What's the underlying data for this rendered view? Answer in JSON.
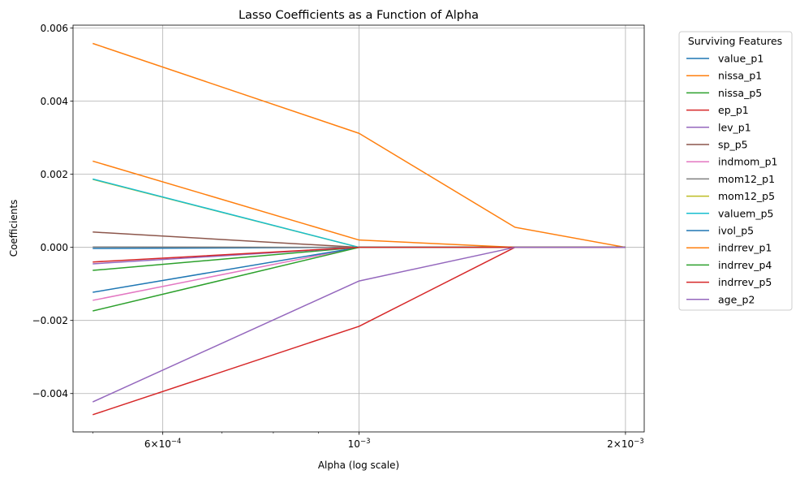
{
  "chart_data": {
    "type": "line",
    "title": "Lasso Coefficients as a Function of Alpha",
    "xlabel": "Alpha (log scale)",
    "ylabel": "Coefficients",
    "xscale": "log",
    "xlim": [
      0.000475,
      0.0021
    ],
    "ylim": [
      -0.00505,
      0.00608
    ],
    "grid": true,
    "x": [
      0.0005,
      0.001,
      0.0015,
      0.002
    ],
    "x_ticks": [
      {
        "value": 0.0006,
        "mantissa": "6",
        "exponent": "−4"
      },
      {
        "value": 0.001,
        "mantissa": "",
        "exponent": "−3"
      },
      {
        "value": 0.002,
        "mantissa": "2",
        "exponent": "−3"
      }
    ],
    "y_ticks": [
      {
        "value": 0.006,
        "label": "0.006"
      },
      {
        "value": 0.004,
        "label": "0.004"
      },
      {
        "value": 0.002,
        "label": "0.002"
      },
      {
        "value": 0.0,
        "label": "0.000"
      },
      {
        "value": -0.002,
        "label": "−0.002"
      },
      {
        "value": -0.004,
        "label": "−0.004"
      }
    ],
    "legend": {
      "title": "Surviving Features",
      "placement": "outside-right"
    },
    "series": [
      {
        "name": "value_p1",
        "color": "#1f77b4",
        "values": [
          -3e-05,
          0,
          0,
          0
        ]
      },
      {
        "name": "nissa_p1",
        "color": "#ff7f0e",
        "values": [
          0.00558,
          0.00312,
          0.00055,
          0
        ]
      },
      {
        "name": "nissa_p5",
        "color": "#2ca02c",
        "values": [
          -0.00063,
          0,
          0,
          0
        ]
      },
      {
        "name": "ep_p1",
        "color": "#d62728",
        "values": [
          -0.00458,
          -0.00216,
          0,
          0
        ]
      },
      {
        "name": "lev_p1",
        "color": "#9467bd",
        "values": [
          -0.00045,
          0,
          0,
          0
        ]
      },
      {
        "name": "sp_p5",
        "color": "#8c564b",
        "values": [
          0.00042,
          0,
          0,
          0
        ]
      },
      {
        "name": "indmom_p1",
        "color": "#e377c2",
        "values": [
          -0.00145,
          0,
          0,
          0
        ]
      },
      {
        "name": "mom12_p1",
        "color": "#7f7f7f",
        "values": [
          1e-05,
          0,
          0,
          0
        ]
      },
      {
        "name": "mom12_p5",
        "color": "#bcbd22",
        "values": [
          0.00186,
          0,
          0,
          0
        ]
      },
      {
        "name": "valuem_p5",
        "color": "#17becf",
        "values": [
          0.00187,
          0,
          0,
          0
        ]
      },
      {
        "name": "ivol_p5",
        "color": "#1f77b4",
        "values": [
          -0.00123,
          0,
          0,
          0
        ]
      },
      {
        "name": "indrrev_p1",
        "color": "#ff7f0e",
        "values": [
          0.00236,
          0.0002,
          0,
          0
        ]
      },
      {
        "name": "indrrev_p4",
        "color": "#2ca02c",
        "values": [
          -0.00174,
          0,
          0,
          0
        ]
      },
      {
        "name": "indrrev_p5",
        "color": "#d62728",
        "values": [
          -0.0004,
          0,
          0,
          0
        ]
      },
      {
        "name": "age_p2",
        "color": "#9467bd",
        "values": [
          -0.00423,
          -0.00092,
          0,
          0
        ]
      }
    ]
  }
}
